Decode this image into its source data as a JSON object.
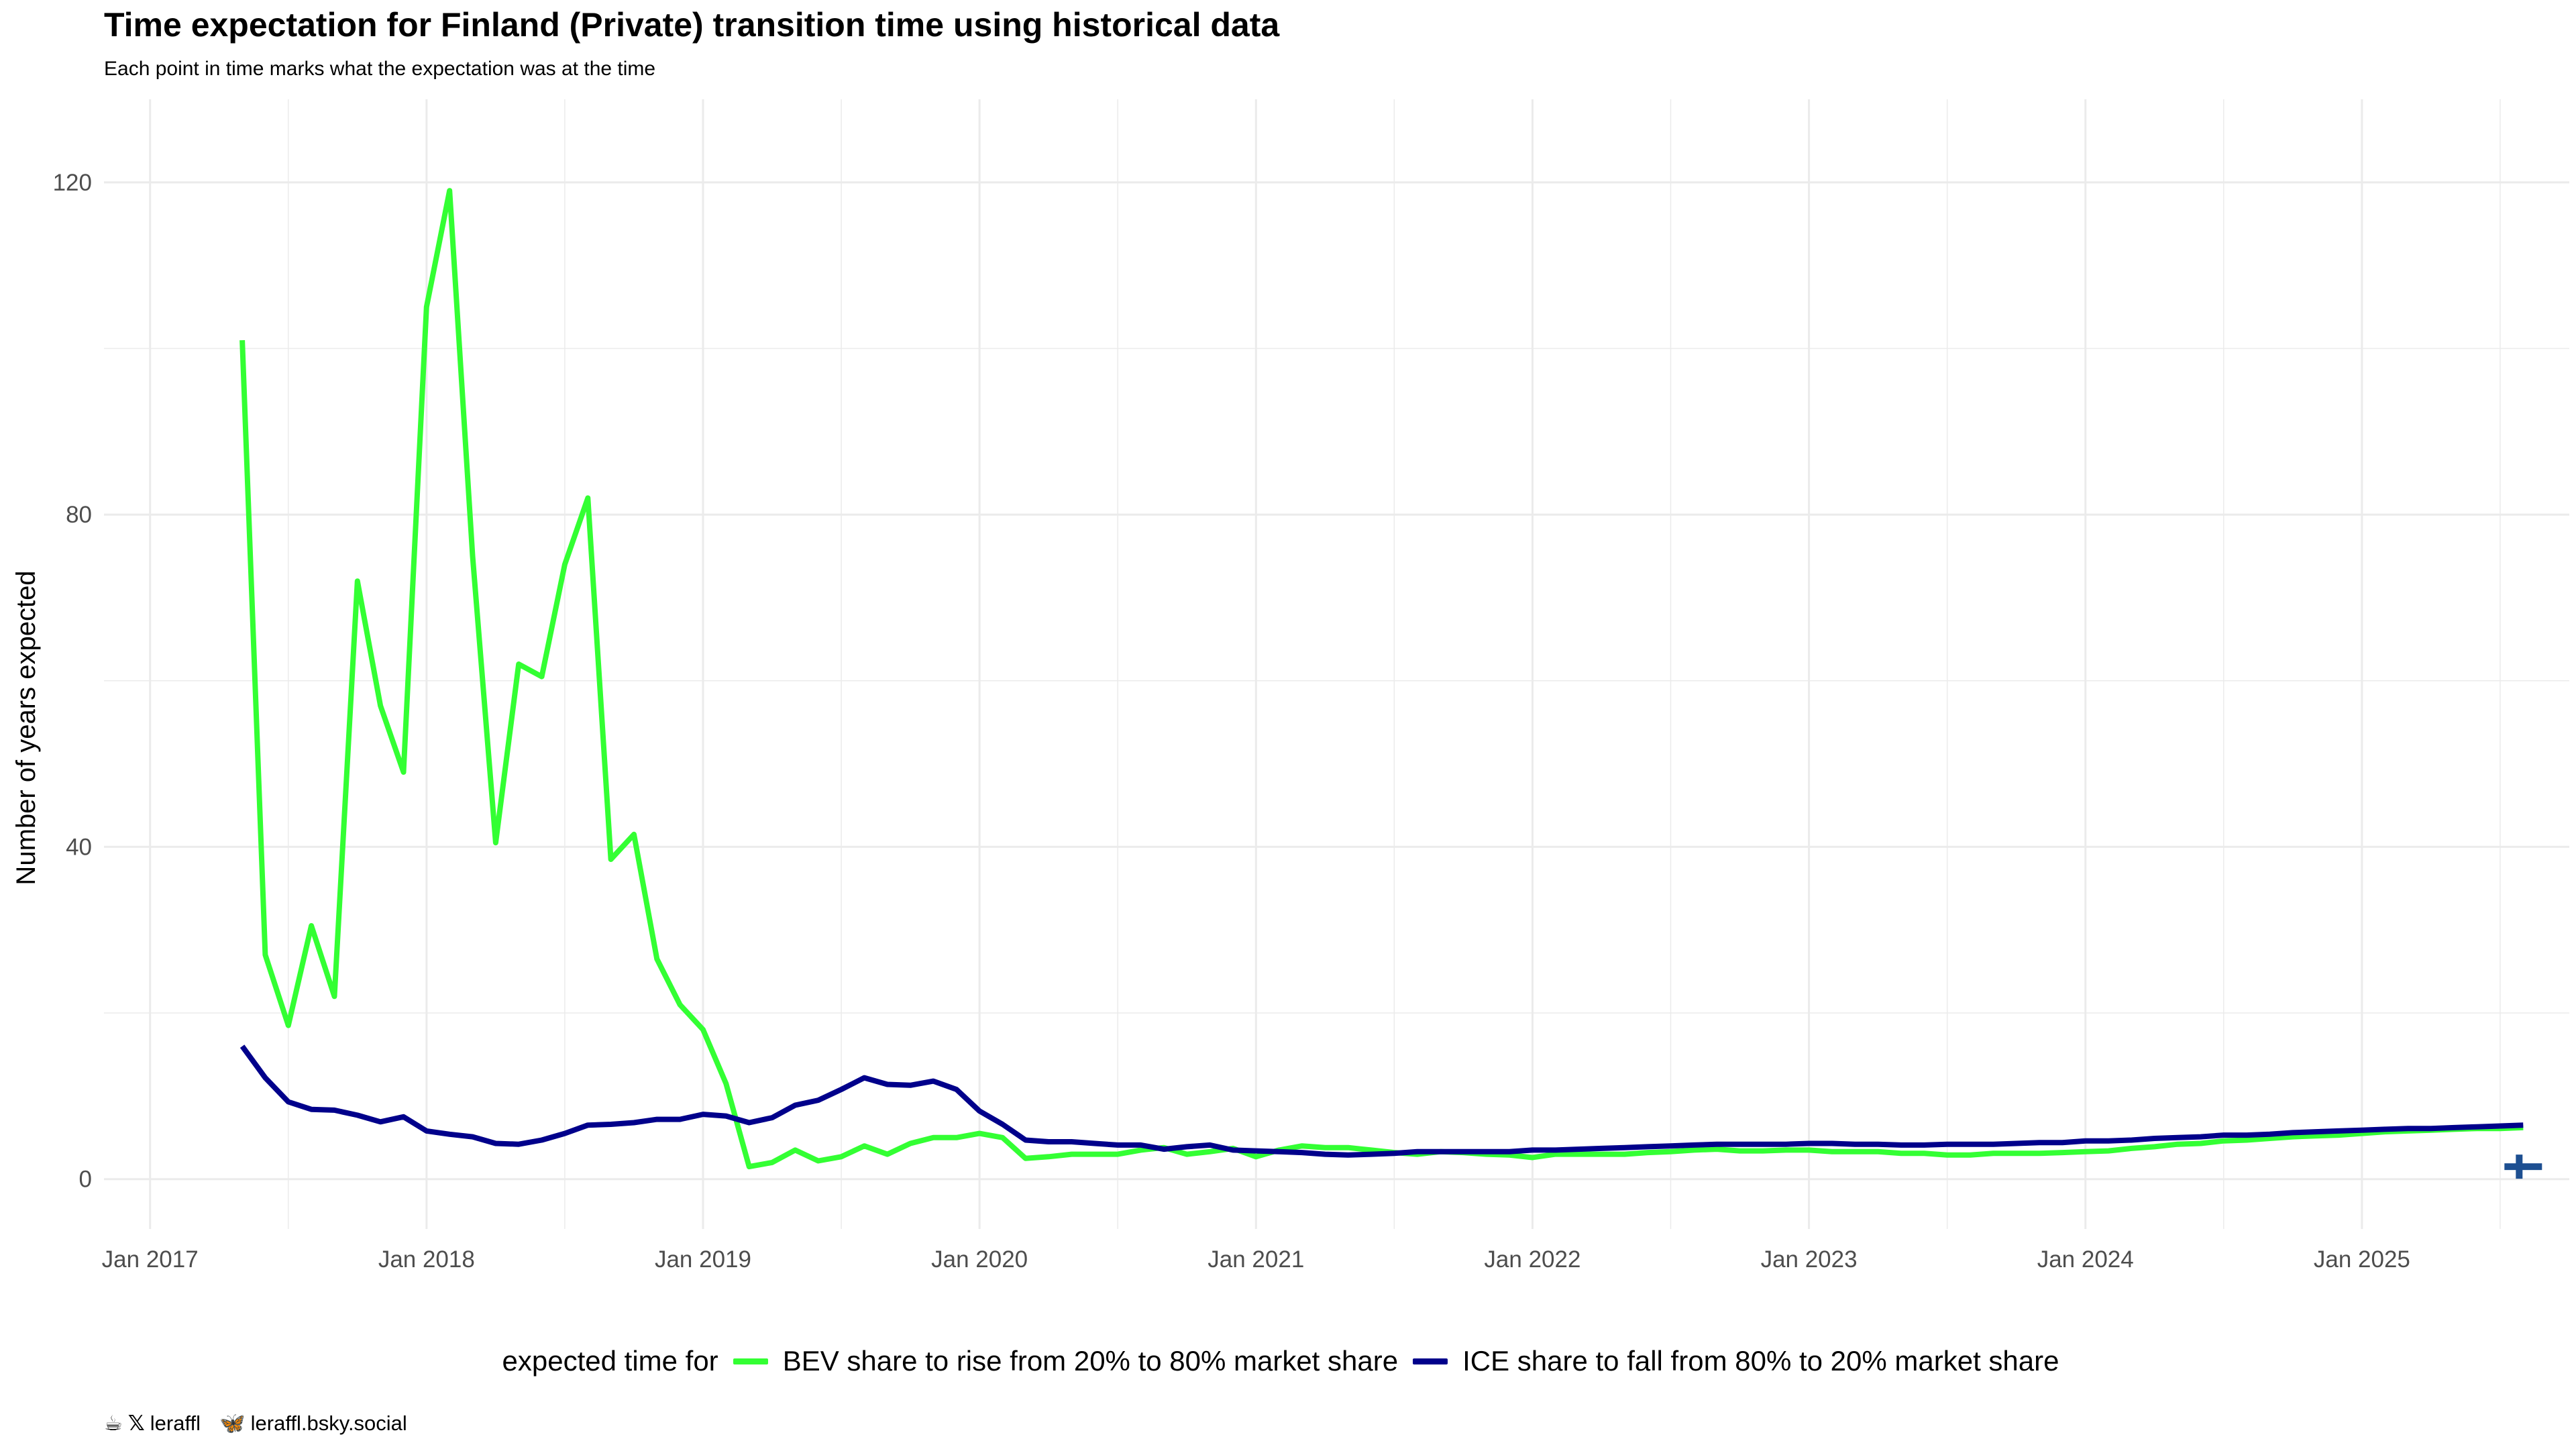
{
  "title": "Time expectation for Finland (Private) transition time using historical data",
  "subtitle": "Each point in time marks what the expectation was at the time",
  "caption": {
    "handle_x": "leraffl",
    "handle_bsky": "leraffl.bsky.social"
  },
  "chart_data": {
    "type": "line",
    "title": "Time expectation for Finland (Private) transition time using historical data",
    "subtitle": "Each point in time marks what the expectation was at the time",
    "xlabel": "",
    "ylabel": "Number of years expected",
    "x_ticks": [
      "Jan 2017",
      "Jan 2018",
      "Jan 2019",
      "Jan 2020",
      "Jan 2021",
      "Jan 2022",
      "Jan 2023",
      "Jan 2024",
      "Jan 2025"
    ],
    "y_ticks": [
      0,
      40,
      80,
      120
    ],
    "xlim": [
      "2016-11-20",
      "2025-10-15"
    ],
    "ylim": [
      -6,
      130
    ],
    "grid": true,
    "legend_position": "bottom",
    "legend_title": "expected time for",
    "series": [
      {
        "name": "BEV share to rise from 20% to 80% market share",
        "color": "#33FF33",
        "x": [
          "2017-05",
          "2017-06",
          "2017-07",
          "2017-08",
          "2017-09",
          "2017-10",
          "2017-11",
          "2017-12",
          "2018-01",
          "2018-02",
          "2018-03",
          "2018-04",
          "2018-05",
          "2018-06",
          "2018-07",
          "2018-08",
          "2018-09",
          "2018-10",
          "2018-11",
          "2018-12",
          "2019-01",
          "2019-02",
          "2019-03",
          "2019-04",
          "2019-05",
          "2019-06",
          "2019-07",
          "2019-08",
          "2019-09",
          "2019-10",
          "2019-11",
          "2019-12",
          "2020-01",
          "2020-02",
          "2020-03",
          "2020-04",
          "2020-05",
          "2020-06",
          "2020-07",
          "2020-08",
          "2020-09",
          "2020-10",
          "2020-11",
          "2020-12",
          "2021-01",
          "2021-02",
          "2021-03",
          "2021-04",
          "2021-05",
          "2021-06",
          "2021-07",
          "2021-08",
          "2021-09",
          "2021-10",
          "2021-11",
          "2021-12",
          "2022-01",
          "2022-02",
          "2022-03",
          "2022-04",
          "2022-05",
          "2022-06",
          "2022-07",
          "2022-08",
          "2022-09",
          "2022-10",
          "2022-11",
          "2022-12",
          "2023-01",
          "2023-02",
          "2023-03",
          "2023-04",
          "2023-05",
          "2023-06",
          "2023-07",
          "2023-08",
          "2023-09",
          "2023-10",
          "2023-11",
          "2023-12",
          "2024-01",
          "2024-02",
          "2024-03",
          "2024-04",
          "2024-05",
          "2024-06",
          "2024-07",
          "2024-08",
          "2024-09",
          "2024-10",
          "2024-11",
          "2024-12",
          "2025-01",
          "2025-02",
          "2025-03",
          "2025-04",
          "2025-05",
          "2025-06",
          "2025-07",
          "2025-08"
        ],
        "values": [
          101,
          27,
          18.5,
          30.5,
          22,
          72,
          57,
          49,
          105,
          119,
          75,
          40.5,
          62,
          60.5,
          74,
          82,
          38.5,
          41.5,
          26.5,
          21,
          18,
          11.5,
          1.5,
          2,
          3.5,
          2.2,
          2.7,
          4,
          3,
          4.3,
          5,
          5,
          5.5,
          5,
          2.5,
          2.7,
          3,
          3,
          3,
          3.5,
          3.8,
          3,
          3.3,
          3.7,
          2.7,
          3.5,
          4,
          3.8,
          3.8,
          3.5,
          3.2,
          3,
          3.3,
          3.2,
          3,
          2.9,
          2.6,
          3,
          3,
          3,
          3,
          3.2,
          3.3,
          3.5,
          3.6,
          3.4,
          3.4,
          3.5,
          3.5,
          3.3,
          3.3,
          3.3,
          3.1,
          3.1,
          2.9,
          2.9,
          3.1,
          3.1,
          3.1,
          3.2,
          3.3,
          3.4,
          3.7,
          3.9,
          4.2,
          4.3,
          4.6,
          4.7,
          4.9,
          5.1,
          5.2,
          5.3,
          5.5,
          5.7,
          5.8,
          5.9,
          6,
          6.1,
          6.1,
          6.2
        ]
      },
      {
        "name": "ICE share to fall from 80% to 20% market share",
        "color": "#00008B",
        "x": [
          "2017-05",
          "2017-06",
          "2017-07",
          "2017-08",
          "2017-09",
          "2017-10",
          "2017-11",
          "2017-12",
          "2018-01",
          "2018-02",
          "2018-03",
          "2018-04",
          "2018-05",
          "2018-06",
          "2018-07",
          "2018-08",
          "2018-09",
          "2018-10",
          "2018-11",
          "2018-12",
          "2019-01",
          "2019-02",
          "2019-03",
          "2019-04",
          "2019-05",
          "2019-06",
          "2019-07",
          "2019-08",
          "2019-09",
          "2019-10",
          "2019-11",
          "2019-12",
          "2020-01",
          "2020-02",
          "2020-03",
          "2020-04",
          "2020-05",
          "2020-06",
          "2020-07",
          "2020-08",
          "2020-09",
          "2020-10",
          "2020-11",
          "2020-12",
          "2021-01",
          "2021-02",
          "2021-03",
          "2021-04",
          "2021-05",
          "2021-06",
          "2021-07",
          "2021-08",
          "2021-09",
          "2021-10",
          "2021-11",
          "2021-12",
          "2022-01",
          "2022-02",
          "2022-03",
          "2022-04",
          "2022-05",
          "2022-06",
          "2022-07",
          "2022-08",
          "2022-09",
          "2022-10",
          "2022-11",
          "2022-12",
          "2023-01",
          "2023-02",
          "2023-03",
          "2023-04",
          "2023-05",
          "2023-06",
          "2023-07",
          "2023-08",
          "2023-09",
          "2023-10",
          "2023-11",
          "2023-12",
          "2024-01",
          "2024-02",
          "2024-03",
          "2024-04",
          "2024-05",
          "2024-06",
          "2024-07",
          "2024-08",
          "2024-09",
          "2024-10",
          "2024-11",
          "2024-12",
          "2025-01",
          "2025-02",
          "2025-03",
          "2025-04",
          "2025-05",
          "2025-06",
          "2025-07",
          "2025-08"
        ],
        "values": [
          16,
          12.2,
          9.3,
          8.4,
          8.3,
          7.7,
          6.9,
          7.5,
          5.8,
          5.4,
          5.1,
          4.3,
          4.2,
          4.7,
          5.5,
          6.5,
          6.6,
          6.8,
          7.2,
          7.2,
          7.8,
          7.6,
          6.8,
          7.4,
          8.9,
          9.5,
          10.8,
          12.2,
          11.4,
          11.3,
          11.8,
          10.8,
          8.2,
          6.6,
          4.7,
          4.5,
          4.5,
          4.3,
          4.1,
          4.1,
          3.6,
          3.9,
          4.1,
          3.5,
          3.4,
          3.3,
          3.2,
          3,
          2.9,
          3,
          3.1,
          3.3,
          3.3,
          3.3,
          3.3,
          3.3,
          3.5,
          3.5,
          3.6,
          3.7,
          3.8,
          3.9,
          4,
          4.1,
          4.2,
          4.2,
          4.2,
          4.2,
          4.3,
          4.3,
          4.2,
          4.2,
          4.1,
          4.1,
          4.2,
          4.2,
          4.2,
          4.3,
          4.4,
          4.4,
          4.6,
          4.6,
          4.7,
          4.9,
          5,
          5.1,
          5.3,
          5.3,
          5.4,
          5.6,
          5.7,
          5.8,
          5.9,
          6,
          6.1,
          6.1,
          6.2,
          6.3,
          6.4,
          6.5
        ]
      }
    ],
    "annotations": [
      {
        "type": "flag-icon",
        "name": "finland-flag-icon",
        "x": "2025-08",
        "y": 1.5,
        "color": "#1D4F91"
      }
    ]
  }
}
